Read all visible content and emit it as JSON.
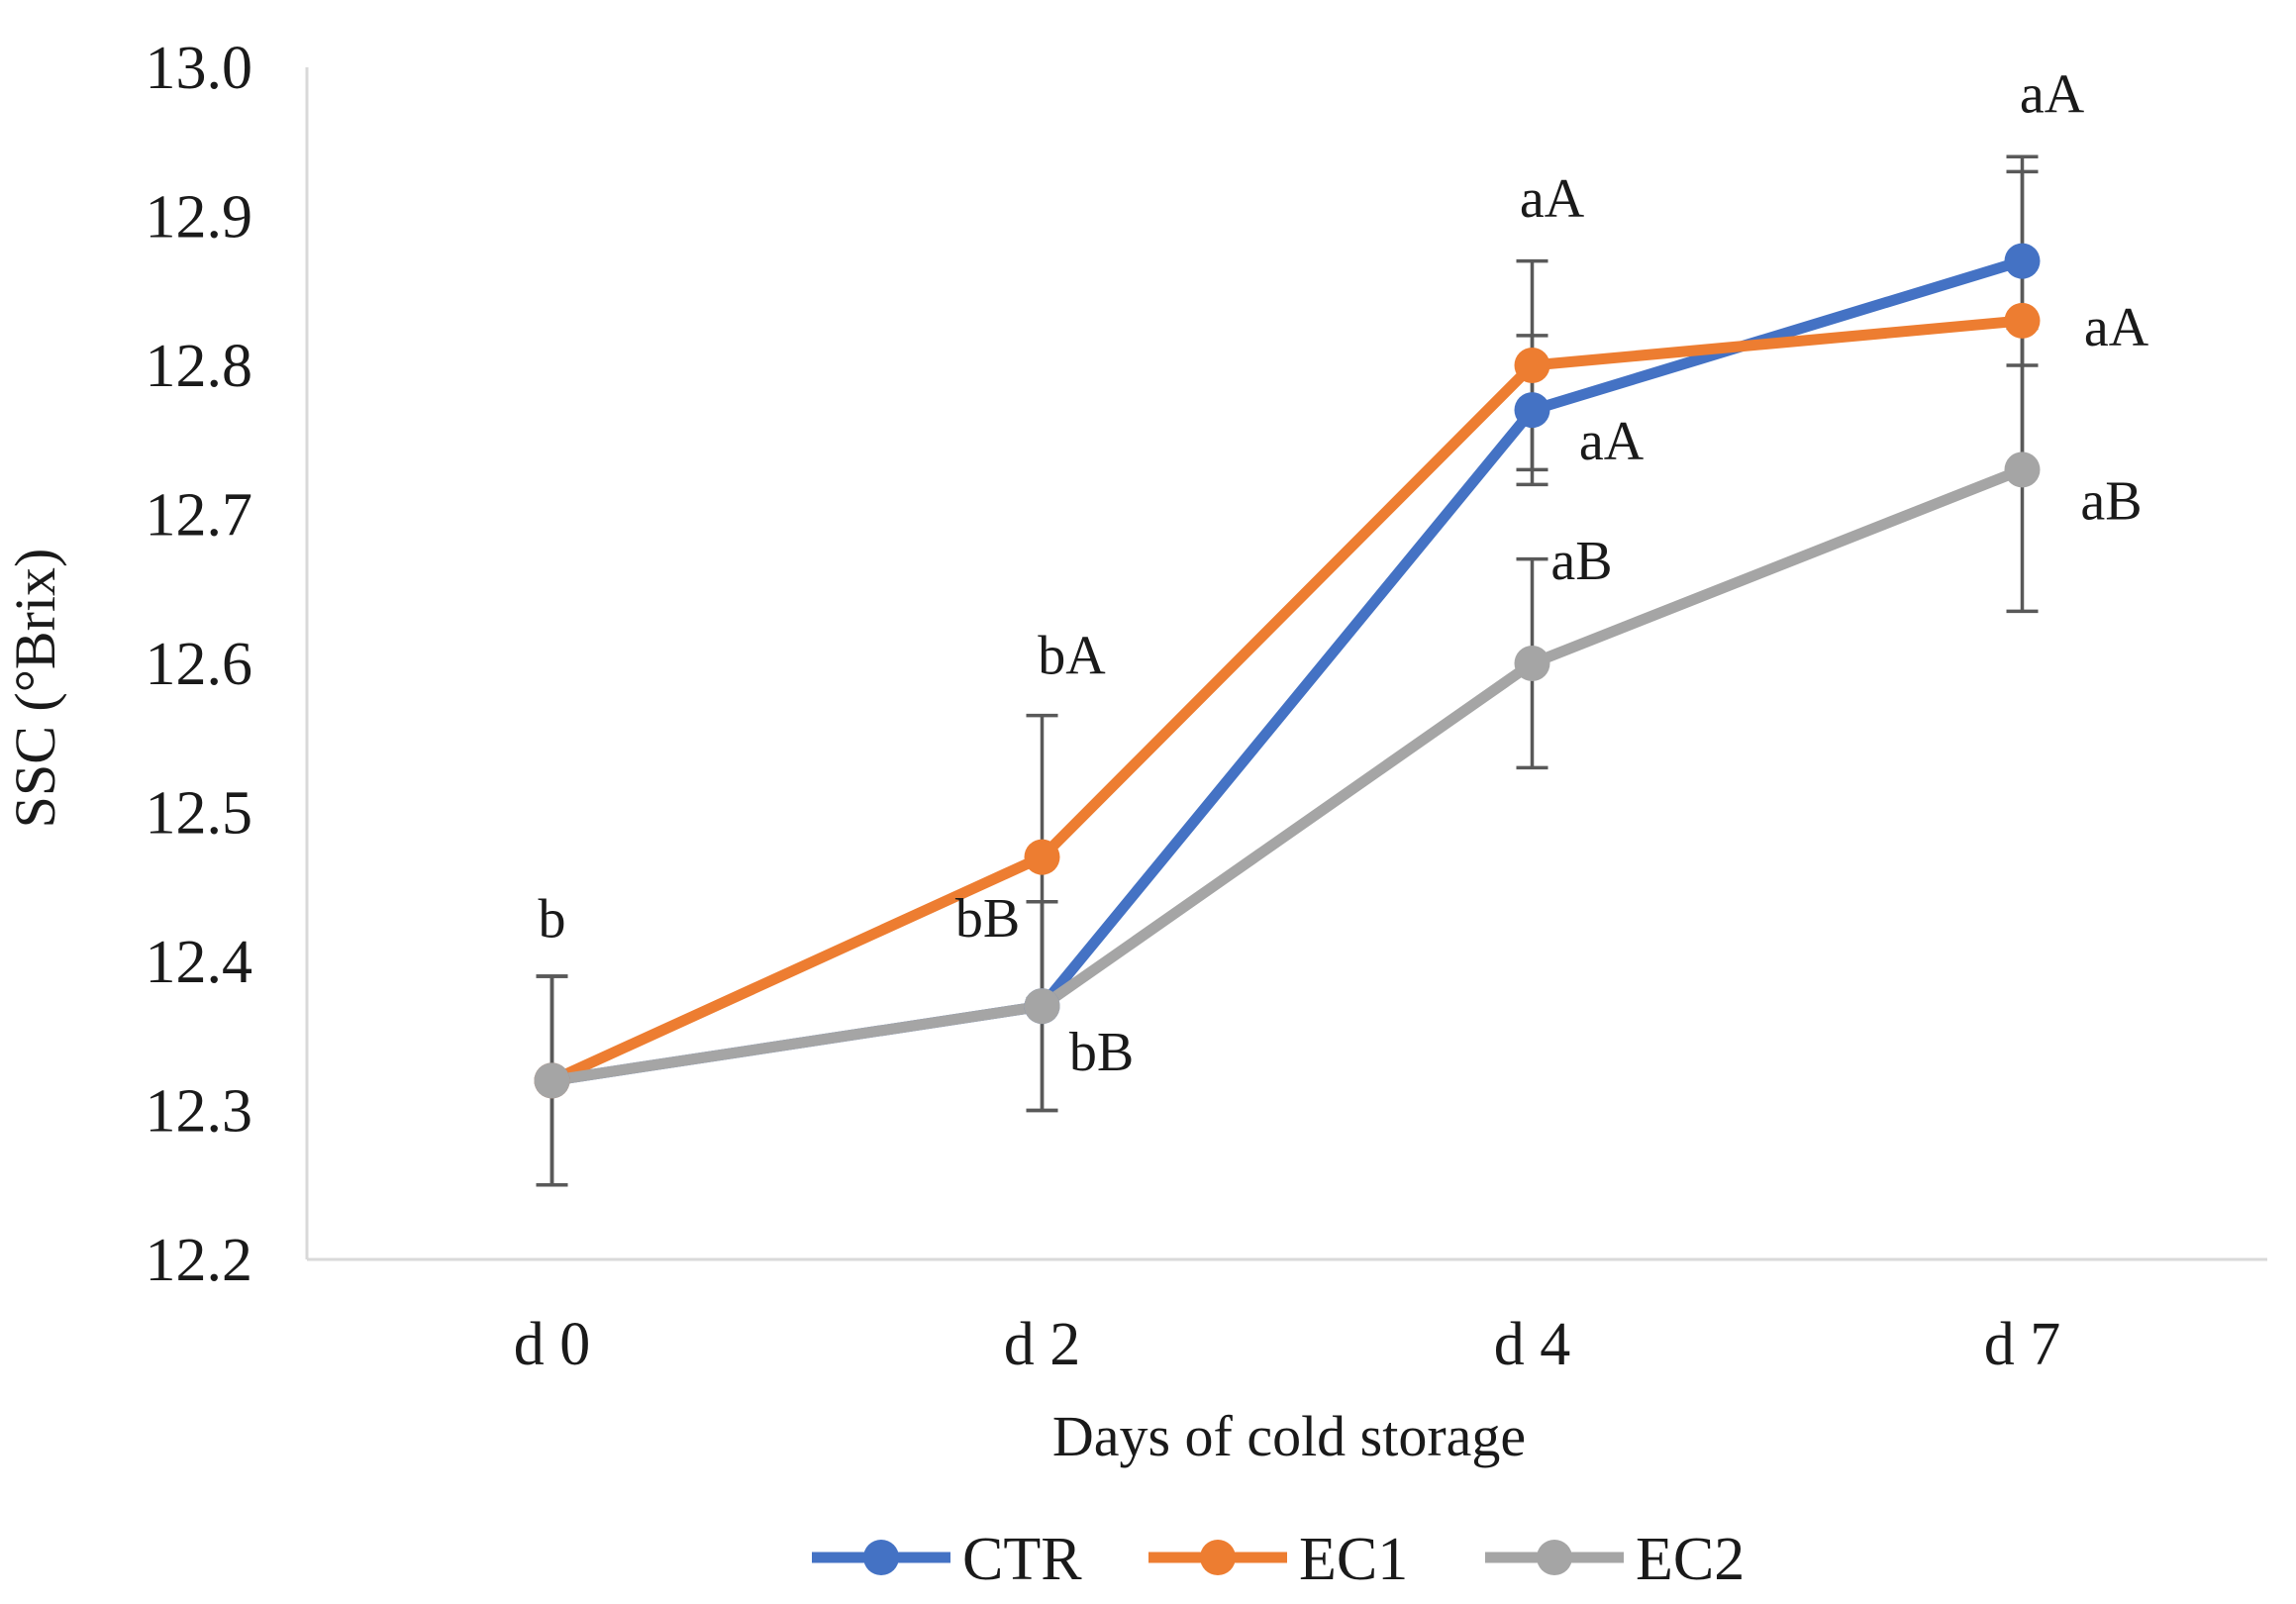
{
  "chart_data": {
    "type": "line",
    "title": "",
    "xlabel": "Days of cold storage",
    "ylabel": "SSC (°Brix)",
    "categories": [
      "d 0",
      "d 2",
      "d 4",
      "d 7"
    ],
    "ylim": [
      12.2,
      13.0
    ],
    "yticks": [
      "12.2",
      "12.3",
      "12.4",
      "12.5",
      "12.6",
      "12.7",
      "12.8",
      "12.9",
      "13.0"
    ],
    "grid": false,
    "legend_position": "bottom",
    "series": [
      {
        "name": "CTR",
        "color": "#4472C4",
        "values": [
          12.32,
          12.37,
          12.77,
          12.87
        ],
        "error": [
          0.07,
          0.07,
          0.05,
          0.07
        ],
        "labels": [
          "",
          "bB",
          "aA",
          "aA"
        ]
      },
      {
        "name": "EC1",
        "color": "#ED7D31",
        "values": [
          12.32,
          12.47,
          12.8,
          12.83
        ],
        "error": [
          0.07,
          0.095,
          0.07,
          0.1
        ],
        "labels": [
          "",
          "bA",
          "aA",
          "aA"
        ]
      },
      {
        "name": "EC2",
        "color": "#A5A5A5",
        "values": [
          12.32,
          12.37,
          12.6,
          12.73
        ],
        "error": [
          0.07,
          0.07,
          0.07,
          0.095
        ],
        "labels": [
          "b",
          "bB",
          "aB",
          "aB"
        ]
      }
    ]
  }
}
